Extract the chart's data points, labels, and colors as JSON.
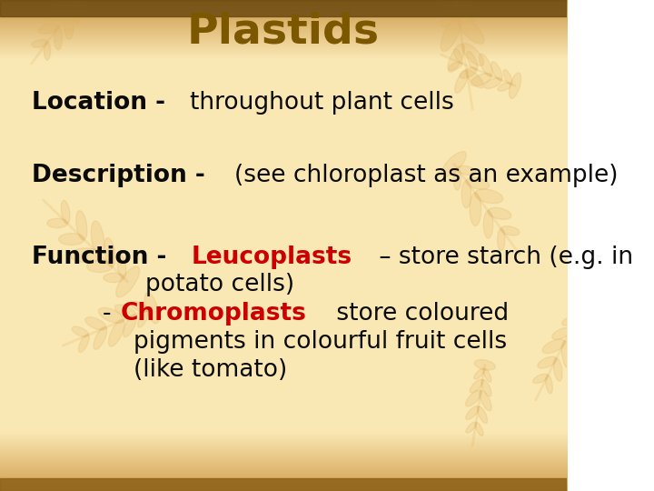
{
  "title": "Plastids",
  "title_color": "#7B5800",
  "title_fontsize": 34,
  "bg_light": "#FAE8B4",
  "bg_dark_edge": "#C8962A",
  "text_black": "#0a0a0a",
  "text_red": "#CC0000",
  "leaf_color": "#E8C078",
  "main_fontsize": 19,
  "location_bold": "Location - ",
  "location_normal": "throughout plant cells",
  "description_bold": "Description - ",
  "description_normal": "(see chloroplast as an example)",
  "function_bold": "Function - ",
  "leucoplasts_word": "Leucoplasts",
  "leucoplasts_rest": " – store starch (e.g. in",
  "potato_line": "potato cells)",
  "chromoplasts_dash": "- ",
  "chromoplasts_word": "Chromoplasts",
  "chromoplasts_rest": " store coloured",
  "pigments_line": "pigments in colourful fruit cells",
  "tomato_line": "(like tomato)"
}
